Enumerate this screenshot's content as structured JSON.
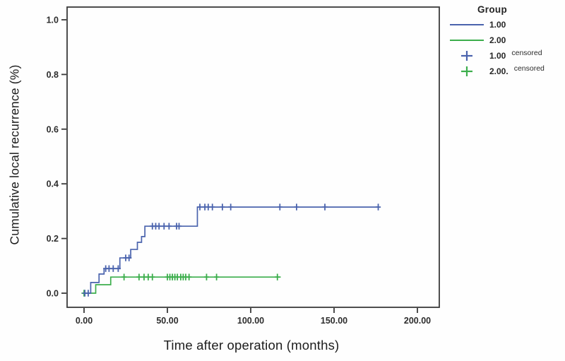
{
  "figure": {
    "xlabel": "Time after operation (months)",
    "ylabel": "Cumulative local recurrence (%)"
  },
  "legend": {
    "title": "Group",
    "items": [
      {
        "label": "1.00",
        "suffix": "",
        "type": "line",
        "color": "#4a63ad"
      },
      {
        "label": "2.00",
        "suffix": "",
        "type": "line",
        "color": "#3cae4c"
      },
      {
        "label": "1.00",
        "suffix": "censored",
        "type": "plus",
        "color": "#4a63ad"
      },
      {
        "label": "2.00.",
        "suffix": "censored",
        "type": "plus",
        "color": "#3cae4c"
      }
    ]
  },
  "chart_data": {
    "type": "line",
    "subtype": "kaplan_meier_step_cumulative_incidence",
    "title": "",
    "xlabel": "Time after operation (months)",
    "ylabel": "Cumulative local recurrence (%)",
    "xticks": [
      0,
      50,
      100,
      150,
      200
    ],
    "xtick_labels": [
      "0.00",
      "50.00",
      "100.00",
      "150.00",
      "200.00"
    ],
    "yticks": [
      0.0,
      0.2,
      0.4,
      0.6,
      0.8,
      1.0
    ],
    "ytick_labels": [
      "0.0",
      "0.2",
      "0.4",
      "0.6",
      "0.8",
      "1.0"
    ],
    "xlim": [
      -10,
      213
    ],
    "ylim": [
      -0.052,
      1.047
    ],
    "grid": false,
    "legend_position": "top-right-outside",
    "axis_color": "#3a3a3a",
    "tick_label_color": "#2d2d2d",
    "series": [
      {
        "name": "1.00",
        "color": "#4a63ad",
        "steps": [
          [
            0,
            0
          ],
          [
            4,
            0.039
          ],
          [
            9,
            0.07
          ],
          [
            12,
            0.09
          ],
          [
            21.5,
            0.129
          ],
          [
            28,
            0.16
          ],
          [
            32,
            0.186
          ],
          [
            34.5,
            0.207
          ],
          [
            36.5,
            0.245
          ],
          [
            68,
            0.315
          ]
        ],
        "end_x": 177,
        "censored": [
          [
            0.5,
            0
          ],
          [
            2.5,
            0
          ],
          [
            13,
            0.09
          ],
          [
            15,
            0.09
          ],
          [
            17.5,
            0.09
          ],
          [
            20.5,
            0.09
          ],
          [
            25,
            0.129
          ],
          [
            27,
            0.129
          ],
          [
            41,
            0.245
          ],
          [
            43,
            0.245
          ],
          [
            45,
            0.245
          ],
          [
            48,
            0.245
          ],
          [
            51,
            0.245
          ],
          [
            55.5,
            0.245
          ],
          [
            57,
            0.245
          ],
          [
            69.5,
            0.315
          ],
          [
            72.5,
            0.315
          ],
          [
            74.5,
            0.315
          ],
          [
            77,
            0.315
          ],
          [
            83,
            0.315
          ],
          [
            88,
            0.315
          ],
          [
            117.5,
            0.315
          ],
          [
            127.5,
            0.315
          ],
          [
            144.5,
            0.315
          ],
          [
            176.5,
            0.315
          ]
        ]
      },
      {
        "name": "2.00",
        "color": "#3cae4c",
        "steps": [
          [
            0,
            0
          ],
          [
            7,
            0.031
          ],
          [
            16,
            0.059
          ]
        ],
        "end_x": 118,
        "censored": [
          [
            0,
            0
          ],
          [
            24,
            0.059
          ],
          [
            33,
            0.059
          ],
          [
            36,
            0.059
          ],
          [
            38.5,
            0.059
          ],
          [
            41,
            0.059
          ],
          [
            50,
            0.059
          ],
          [
            51.5,
            0.059
          ],
          [
            53,
            0.059
          ],
          [
            54.5,
            0.059
          ],
          [
            56,
            0.059
          ],
          [
            58,
            0.059
          ],
          [
            59.5,
            0.059
          ],
          [
            61,
            0.059
          ],
          [
            63,
            0.059
          ],
          [
            73.5,
            0.059
          ],
          [
            79.5,
            0.059
          ],
          [
            116,
            0.059
          ]
        ]
      }
    ]
  }
}
